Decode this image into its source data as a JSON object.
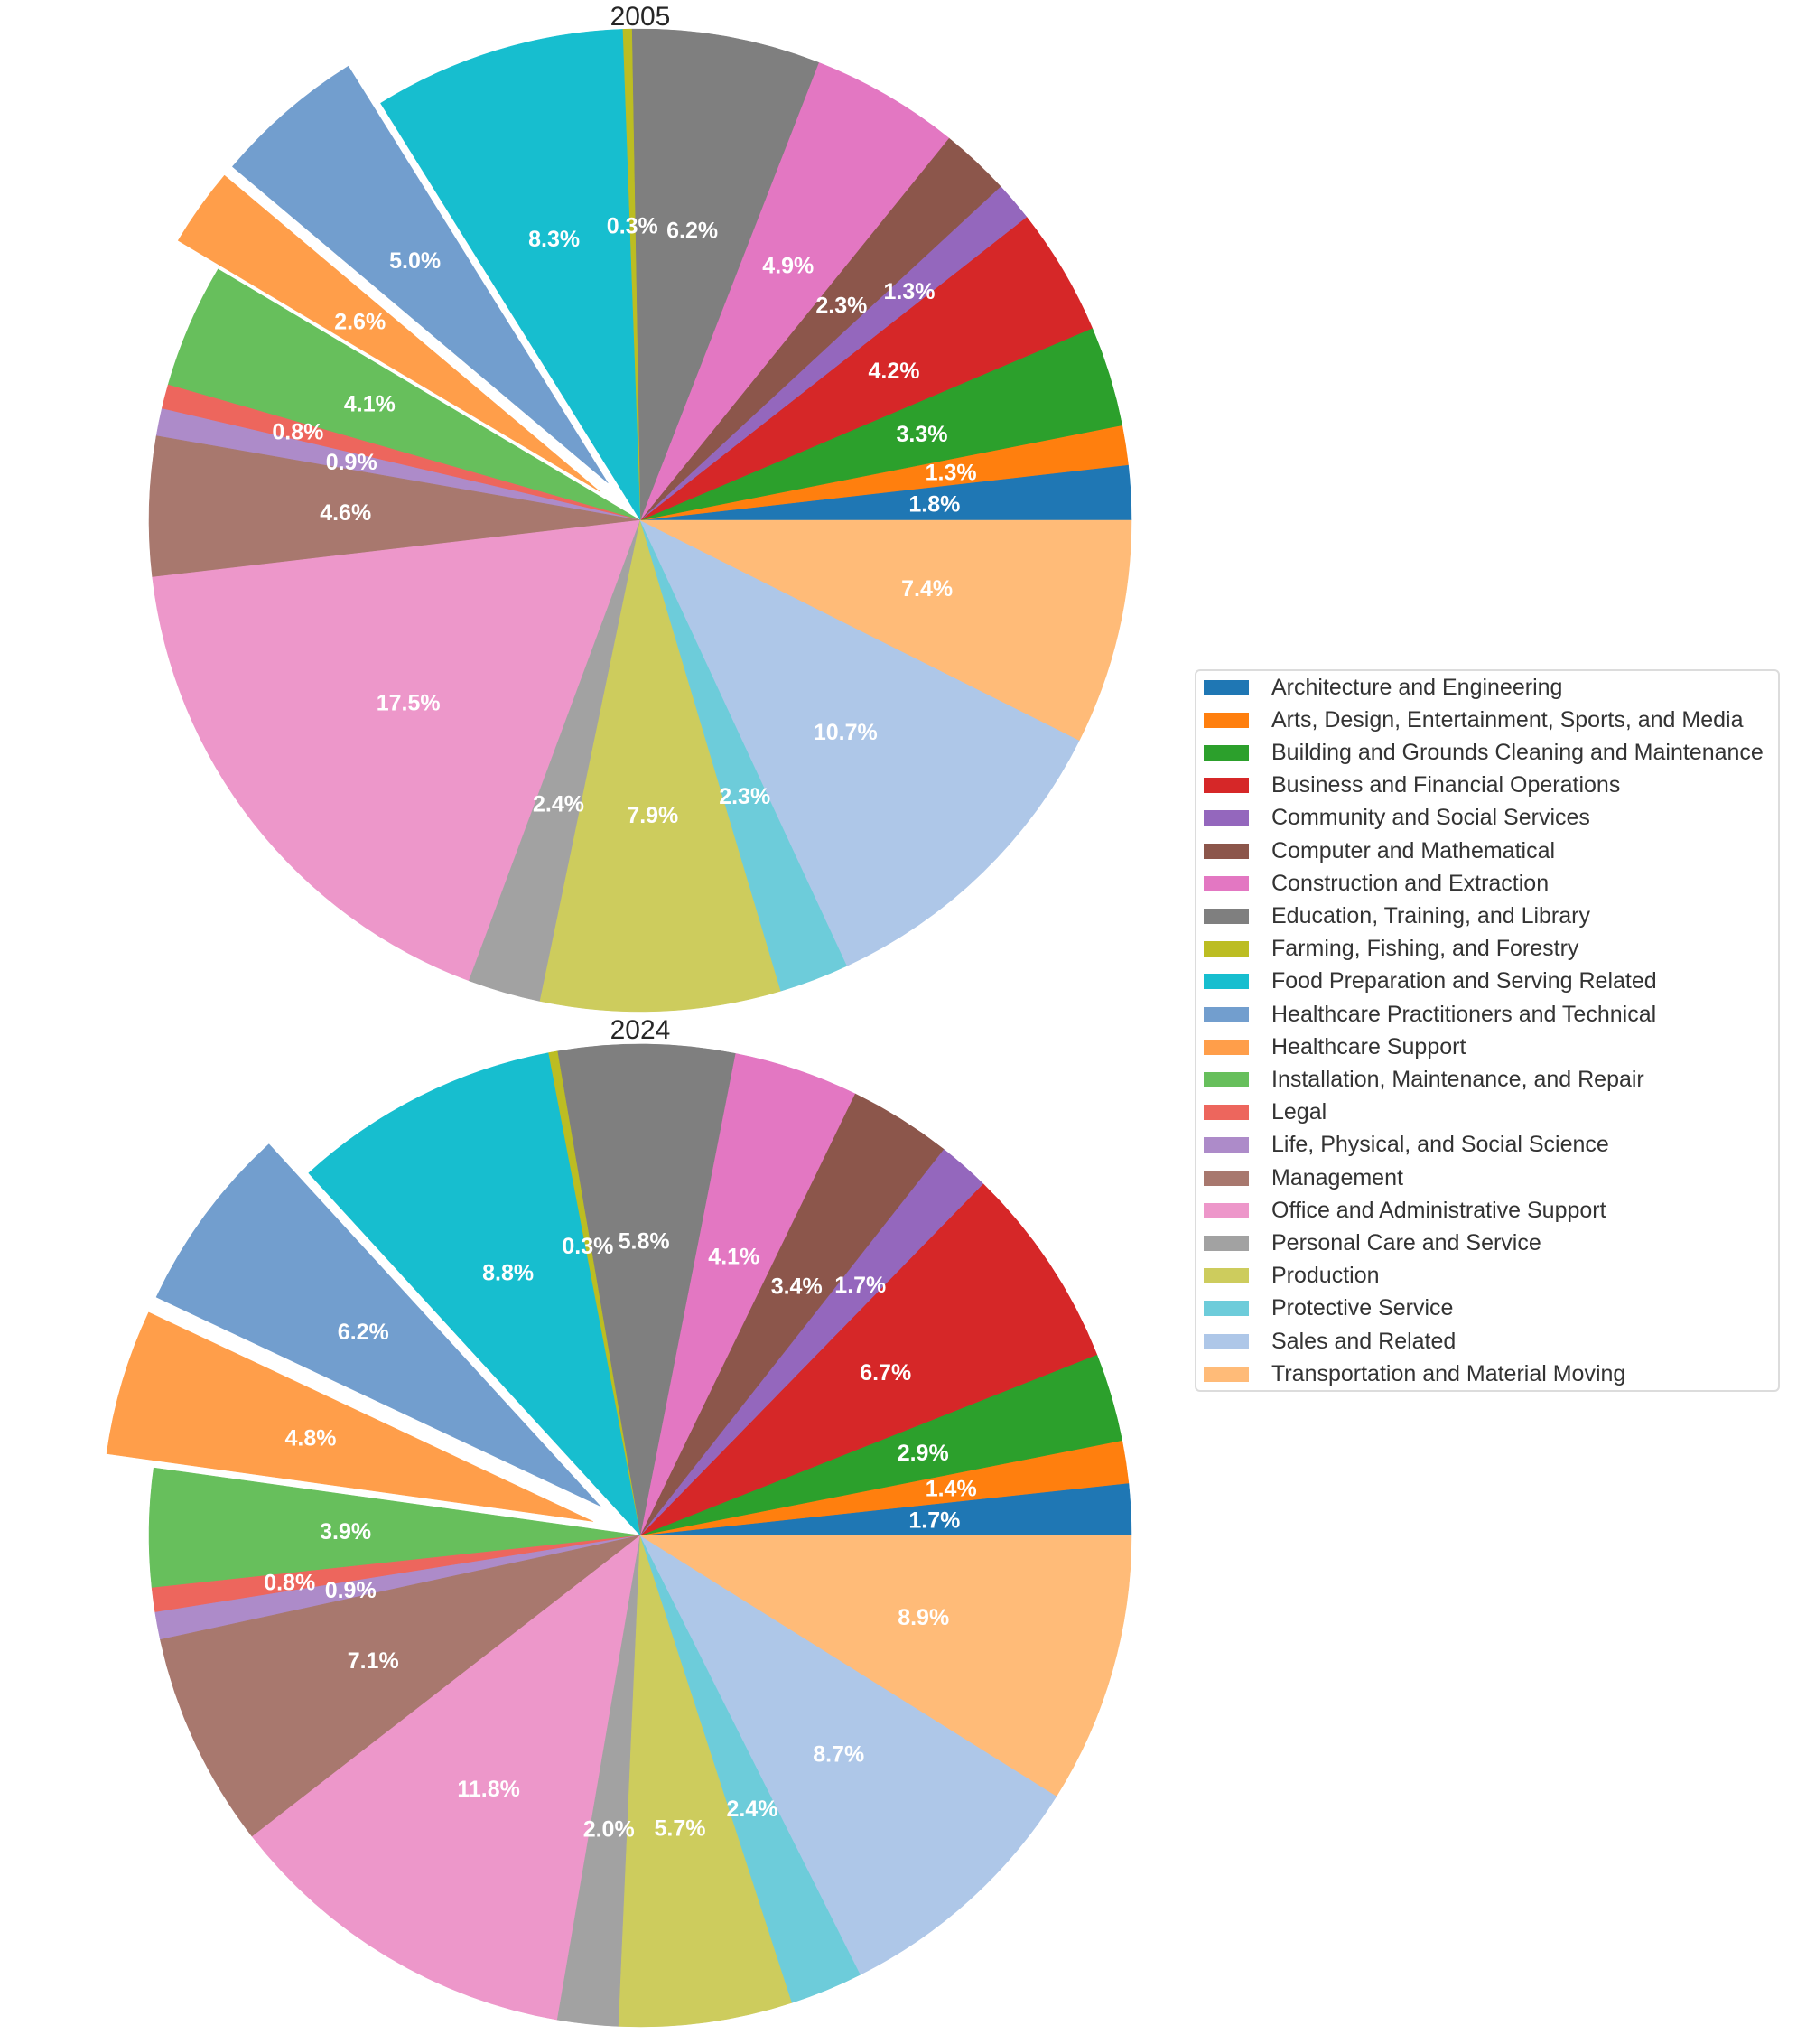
{
  "chart_data": {
    "type": "pie",
    "legend_position": "right",
    "categories": [
      "Architecture and Engineering",
      "Arts, Design, Entertainment, Sports, and Media",
      "Building and Grounds Cleaning and Maintenance",
      "Business and Financial Operations",
      "Community and Social Services",
      "Computer and Mathematical",
      "Construction and Extraction",
      "Education, Training, and Library",
      "Farming, Fishing, and Forestry",
      "Food Preparation and Serving Related",
      "Healthcare Practitioners and Technical",
      "Healthcare Support",
      "Installation, Maintenance, and Repair",
      "Legal",
      "Life, Physical, and Social Science",
      "Management",
      "Office and Administrative Support",
      "Personal Care and Service",
      "Production",
      "Protective Service",
      "Sales and Related",
      "Transportation and Material Moving"
    ],
    "colors": [
      "#1f77b4",
      "#ff7f0e",
      "#2ca02c",
      "#d62728",
      "#9467bd",
      "#8c564b",
      "#e377c2",
      "#7f7f7f",
      "#bcbd22",
      "#17becf",
      "#729ece",
      "#ff9e4a",
      "#67bf5c",
      "#ed665d",
      "#ad8bc9",
      "#a8786e",
      "#ed97ca",
      "#a2a2a2",
      "#cdcc5d",
      "#6dccda",
      "#aec7e8",
      "#ffbb78"
    ],
    "exploded": [
      "Healthcare Practitioners and Technical",
      "Healthcare Support"
    ],
    "series": [
      {
        "name": "2005",
        "title": "2005",
        "values": [
          1.8,
          1.3,
          3.3,
          4.2,
          1.3,
          2.3,
          4.9,
          6.2,
          0.3,
          8.3,
          5.0,
          2.6,
          4.1,
          0.8,
          0.9,
          4.6,
          17.5,
          2.4,
          7.9,
          2.3,
          10.7,
          7.4
        ],
        "labels": [
          "1.8%",
          "1.3%",
          "3.3%",
          "4.2%",
          "1.3%",
          "2.3%",
          "4.9%",
          "6.2%",
          "0.3%",
          "8.3%",
          "5.0%",
          "2.6%",
          "4.1%",
          "0.8%",
          "0.9%",
          "4.6%",
          "17.5%",
          "2.4%",
          "7.9%",
          "2.3%",
          "10.7%",
          "7.4%"
        ]
      },
      {
        "name": "2024",
        "title": "2024",
        "values": [
          1.7,
          1.4,
          2.9,
          6.7,
          1.7,
          3.4,
          4.1,
          5.8,
          0.3,
          8.8,
          6.2,
          4.8,
          3.9,
          0.8,
          0.9,
          7.1,
          11.8,
          2.0,
          5.7,
          2.4,
          8.7,
          8.9
        ],
        "labels": [
          "1.7%",
          "1.4%",
          "2.9%",
          "6.7%",
          "1.7%",
          "3.4%",
          "4.1%",
          "5.8%",
          "0.3%",
          "8.8%",
          "6.2%",
          "4.8%",
          "3.9%",
          "0.8%",
          "0.9%",
          "7.1%",
          "11.8%",
          "2.0%",
          "5.7%",
          "2.4%",
          "8.7%",
          "8.9%"
        ]
      }
    ]
  }
}
